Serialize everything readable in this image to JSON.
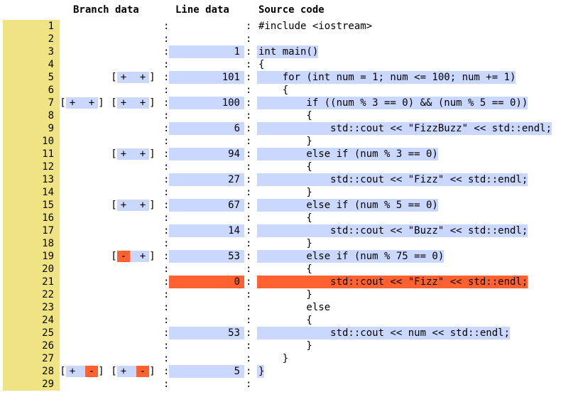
{
  "headers": {
    "branch": "Branch data",
    "line": "Line data",
    "source": "Source code"
  },
  "colors": {
    "line_number_bg": "#efe383",
    "covered": "#cad7fe",
    "uncovered": "#ff6230"
  },
  "rows": [
    {
      "num": "1",
      "count": "",
      "status": "none",
      "code": "#include <iostream>",
      "left": [],
      "right": []
    },
    {
      "num": "2",
      "count": "",
      "status": "none",
      "code": "",
      "left": [],
      "right": []
    },
    {
      "num": "3",
      "count": "1",
      "status": "hit",
      "code": "int main()",
      "left": [],
      "right": []
    },
    {
      "num": "4",
      "count": "",
      "status": "none",
      "code": "{",
      "left": [],
      "right": []
    },
    {
      "num": "5",
      "count": "101",
      "status": "hit",
      "code": "    for (int num = 1; num <= 100; num += 1)",
      "left": [],
      "right": [
        "+",
        "+"
      ]
    },
    {
      "num": "6",
      "count": "",
      "status": "none",
      "code": "    {",
      "left": [],
      "right": []
    },
    {
      "num": "7",
      "count": "100",
      "status": "hit",
      "code": "        if ((num % 3 == 0) && (num % 5 == 0))",
      "left": [
        "+",
        "+"
      ],
      "right": [
        "+",
        "+"
      ]
    },
    {
      "num": "8",
      "count": "",
      "status": "none",
      "code": "        {",
      "left": [],
      "right": []
    },
    {
      "num": "9",
      "count": "6",
      "status": "hit",
      "code": "            std::cout << \"FizzBuzz\" << std::endl;",
      "left": [],
      "right": []
    },
    {
      "num": "10",
      "count": "",
      "status": "none",
      "code": "        }",
      "left": [],
      "right": []
    },
    {
      "num": "11",
      "count": "94",
      "status": "hit",
      "code": "        else if (num % 3 == 0)",
      "left": [],
      "right": [
        "+",
        "+"
      ]
    },
    {
      "num": "12",
      "count": "",
      "status": "none",
      "code": "        {",
      "left": [],
      "right": []
    },
    {
      "num": "13",
      "count": "27",
      "status": "hit",
      "code": "            std::cout << \"Fizz\" << std::endl;",
      "left": [],
      "right": []
    },
    {
      "num": "14",
      "count": "",
      "status": "none",
      "code": "        }",
      "left": [],
      "right": []
    },
    {
      "num": "15",
      "count": "67",
      "status": "hit",
      "code": "        else if (num % 5 == 0)",
      "left": [],
      "right": [
        "+",
        "+"
      ]
    },
    {
      "num": "16",
      "count": "",
      "status": "none",
      "code": "        {",
      "left": [],
      "right": []
    },
    {
      "num": "17",
      "count": "14",
      "status": "hit",
      "code": "            std::cout << \"Buzz\" << std::endl;",
      "left": [],
      "right": []
    },
    {
      "num": "18",
      "count": "",
      "status": "none",
      "code": "        }",
      "left": [],
      "right": []
    },
    {
      "num": "19",
      "count": "53",
      "status": "hit",
      "code": "        else if (num % 75 == 0)",
      "left": [],
      "right": [
        "-",
        "+"
      ]
    },
    {
      "num": "20",
      "count": "",
      "status": "none",
      "code": "        {",
      "left": [],
      "right": []
    },
    {
      "num": "21",
      "count": "0",
      "status": "miss",
      "code": "            std::cout << \"Fizz\" << std::endl;",
      "left": [],
      "right": []
    },
    {
      "num": "22",
      "count": "",
      "status": "none",
      "code": "        }",
      "left": [],
      "right": []
    },
    {
      "num": "23",
      "count": "",
      "status": "none",
      "code": "        else",
      "left": [],
      "right": []
    },
    {
      "num": "24",
      "count": "",
      "status": "none",
      "code": "        {",
      "left": [],
      "right": []
    },
    {
      "num": "25",
      "count": "53",
      "status": "hit",
      "code": "            std::cout << num << std::endl;",
      "left": [],
      "right": []
    },
    {
      "num": "26",
      "count": "",
      "status": "none",
      "code": "        }",
      "left": [],
      "right": []
    },
    {
      "num": "27",
      "count": "",
      "status": "none",
      "code": "    }",
      "left": [],
      "right": []
    },
    {
      "num": "28",
      "count": "5",
      "status": "hit",
      "code": "}",
      "left": [
        "+",
        "-"
      ],
      "right": [
        "+",
        "-"
      ]
    },
    {
      "num": "29",
      "count": "",
      "status": "none",
      "code": "",
      "left": [],
      "right": []
    }
  ]
}
